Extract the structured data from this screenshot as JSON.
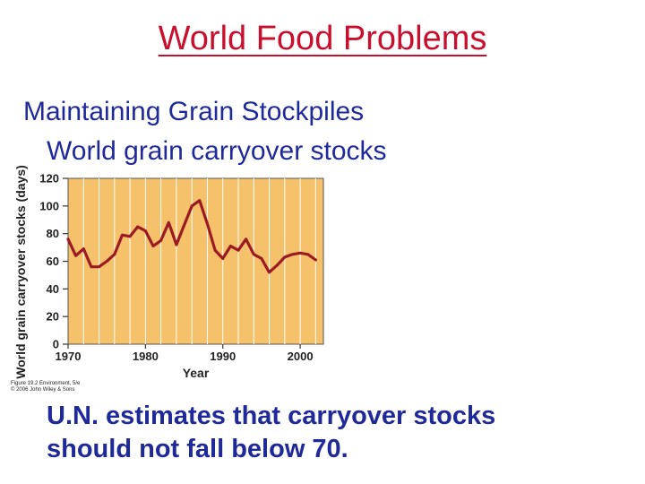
{
  "slide": {
    "title": "World Food Problems",
    "subtitle": "Maintaining Grain Stockpiles",
    "chart_caption": "World grain carryover stocks",
    "note_line1": "U.N. estimates that carryover stocks",
    "note_line2": "should not fall below 70.",
    "figure_credit_line1": "Figure 19.2 Environment, 5/e",
    "figure_credit_line2": "© 2006 John Wiley & Sons"
  },
  "colors": {
    "title": "#c8102e",
    "text": "#1f2a9a",
    "plot_background": "#f5c26b",
    "grid": "#ffffff",
    "line": "#9b1b24"
  },
  "chart_data": {
    "type": "line",
    "title": "",
    "xlabel": "Year",
    "ylabel": "World grain carryover stocks (days)",
    "xlim": [
      1970,
      2003
    ],
    "ylim": [
      0,
      120
    ],
    "x_ticks": [
      1970,
      1980,
      1990,
      2000
    ],
    "y_ticks": [
      0,
      20,
      40,
      60,
      80,
      100,
      120
    ],
    "grid": "vertical-only",
    "legend": "none",
    "series": [
      {
        "x": [
          1970,
          1971,
          1972,
          1973,
          1974,
          1975,
          1976,
          1977,
          1978,
          1979,
          1980,
          1981,
          1982,
          1983,
          1984,
          1985,
          1986,
          1987,
          1988,
          1989,
          1990,
          1991,
          1992,
          1993,
          1994,
          1995,
          1996,
          1997,
          1998,
          1999,
          2000,
          2001,
          2002
        ],
        "values": [
          76,
          64,
          69,
          56,
          56,
          60,
          65,
          79,
          78,
          85,
          82,
          71,
          75,
          88,
          72,
          86,
          100,
          104,
          87,
          68,
          62,
          71,
          68,
          76,
          65,
          62,
          52,
          57,
          63,
          65,
          66,
          65,
          61
        ]
      }
    ]
  }
}
